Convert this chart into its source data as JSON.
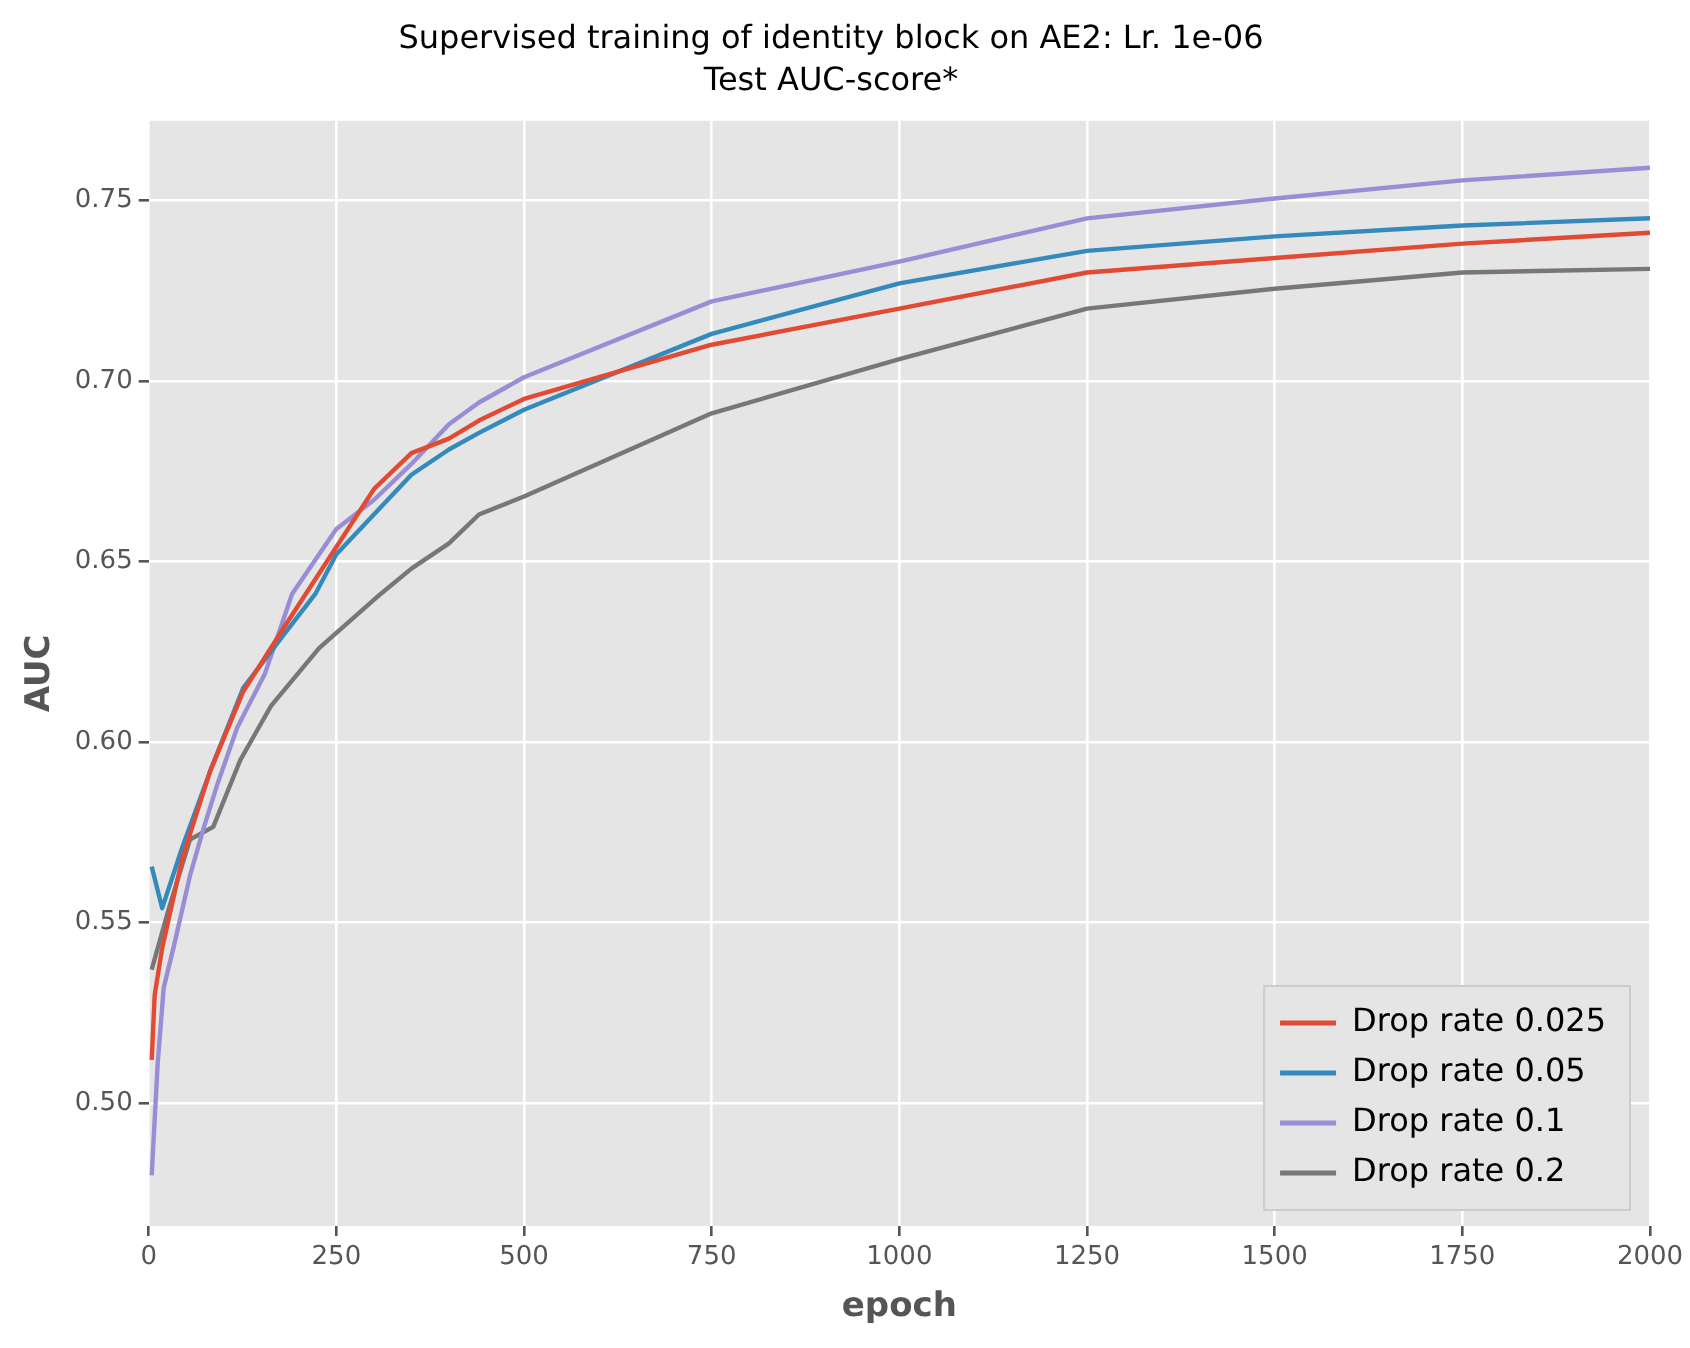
{
  "chart_data": {
    "type": "line",
    "title": "Supervised training of identity block on AE2: Lr. 1e-06",
    "subtitle": "Test AUC-score*",
    "xlabel": "epoch",
    "ylabel": "AUC",
    "xlim": [
      0,
      2000
    ],
    "xticks": [
      0,
      250,
      500,
      750,
      1000,
      1250,
      1500,
      1750,
      2000
    ],
    "ylim": [
      0.466,
      0.772
    ],
    "yticks": [
      {
        "value": 0.5,
        "label": "0.50"
      },
      {
        "value": 0.55,
        "label": "0.55"
      },
      {
        "value": 0.6,
        "label": "0.60"
      },
      {
        "value": 0.65,
        "label": "0.65"
      },
      {
        "value": 0.7,
        "label": "0.70"
      },
      {
        "value": 0.75,
        "label": "0.75"
      }
    ],
    "grid": true,
    "legend": "bottom right",
    "marker": "none",
    "line_style": "solid",
    "series": [
      {
        "name": "Drop rate 0.025",
        "color": "#e24a33",
        "x": [
          4,
          8,
          18,
          45,
          82,
          126,
          181,
          250,
          300,
          350,
          400,
          440,
          500,
          600,
          750,
          1000,
          1250,
          1500,
          1750,
          2000
        ],
        "values": [
          0.512,
          0.53,
          0.543,
          0.568,
          0.592,
          0.614,
          0.632,
          0.654,
          0.67,
          0.68,
          0.684,
          0.689,
          0.695,
          0.701,
          0.71,
          0.72,
          0.73,
          0.734,
          0.738,
          0.741
        ]
      },
      {
        "name": "Drop rate 0.05",
        "color": "#348abd",
        "x": [
          4,
          18,
          45,
          82,
          126,
          181,
          222,
          250,
          300,
          350,
          400,
          440,
          500,
          750,
          1000,
          1250,
          1500,
          1750,
          2000
        ],
        "values": [
          0.5655,
          0.554,
          0.571,
          0.592,
          0.615,
          0.63,
          0.641,
          0.652,
          0.663,
          0.674,
          0.681,
          0.6856,
          0.692,
          0.713,
          0.727,
          0.736,
          0.74,
          0.743,
          0.745
        ]
      },
      {
        "name": "Drop rate 0.1",
        "color": "#988ed5",
        "x": [
          4,
          12,
          20,
          33,
          55,
          73,
          91,
          118,
          155,
          191,
          250,
          300,
          350,
          400,
          440,
          500,
          750,
          1000,
          1250,
          1500,
          1750,
          2000
        ],
        "values": [
          0.48,
          0.511,
          0.532,
          0.543,
          0.563,
          0.576,
          0.588,
          0.604,
          0.619,
          0.641,
          0.659,
          0.667,
          0.677,
          0.688,
          0.694,
          0.701,
          0.722,
          0.733,
          0.745,
          0.7505,
          0.7555,
          0.759
        ]
      },
      {
        "name": "Drop rate 0.2",
        "color": "#777777",
        "x": [
          4,
          27,
          55,
          86,
          122,
          163,
          227,
          309,
          350,
          400,
          440,
          500,
          750,
          1000,
          1250,
          1500,
          1750,
          2000
        ],
        "values": [
          0.537,
          0.554,
          0.573,
          0.5765,
          0.595,
          0.61,
          0.626,
          0.641,
          0.648,
          0.655,
          0.663,
          0.668,
          0.691,
          0.706,
          0.72,
          0.7255,
          0.73,
          0.731
        ]
      }
    ]
  }
}
